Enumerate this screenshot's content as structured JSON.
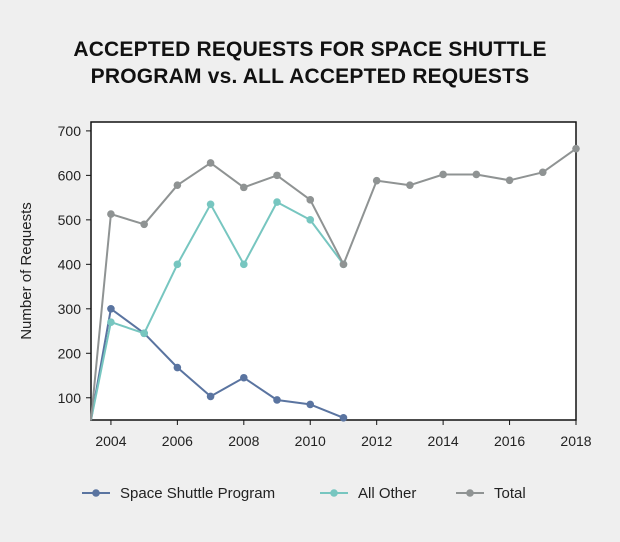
{
  "chart_data": {
    "type": "line",
    "title_lines": [
      "ACCEPTED REQUESTS FOR SPACE SHUTTLE",
      "PROGRAM vs. ALL ACCEPTED REQUESTS"
    ],
    "ylabel": "Number of Requests",
    "xlabel": "",
    "xlim": [
      2003.4,
      2018
    ],
    "ylim": [
      50,
      720
    ],
    "x_ticks": [
      "2004",
      "2006",
      "2008",
      "2010",
      "2012",
      "2014",
      "2016",
      "2018"
    ],
    "y_ticks": [
      "100",
      "200",
      "300",
      "400",
      "500",
      "600",
      "700"
    ],
    "legend_position": "bottom",
    "series": [
      {
        "name": "Space Shuttle Program",
        "color": "#5a74a0",
        "x": [
          2003.4,
          2004,
          2005,
          2006,
          2007,
          2008,
          2009,
          2010,
          2011
        ],
        "values": [
          50,
          300,
          245,
          168,
          103,
          145,
          95,
          85,
          55
        ],
        "markers_from": 1
      },
      {
        "name": "All Other",
        "color": "#77c6c0",
        "x": [
          2003.4,
          2004,
          2005,
          2006,
          2007,
          2008,
          2009,
          2010,
          2011
        ],
        "values": [
          50,
          270,
          245,
          400,
          535,
          400,
          540,
          500,
          400
        ],
        "markers_from": 1
      },
      {
        "name": "Total",
        "color": "#8f9393",
        "x": [
          2003.4,
          2004,
          2005,
          2006,
          2007,
          2008,
          2009,
          2010,
          2011,
          2012,
          2013,
          2014,
          2015,
          2016,
          2017,
          2018
        ],
        "values": [
          50,
          513,
          490,
          578,
          628,
          573,
          600,
          545,
          400,
          588,
          578,
          602,
          602,
          589,
          607,
          660
        ],
        "markers_from": 1
      }
    ]
  }
}
